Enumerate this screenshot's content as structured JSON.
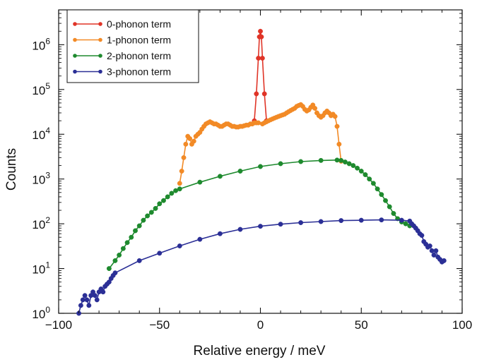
{
  "chart_data": {
    "type": "scatter",
    "xlabel": "Relative  energy /  meV",
    "ylabel": "Counts",
    "xlim": [
      -100,
      100
    ],
    "ylim": [
      1,
      6000000
    ],
    "y_scale": "log",
    "grid": false,
    "legend_position": "top-left",
    "x_ticks": [
      -100,
      -50,
      0,
      50,
      100
    ],
    "x_tick_labels": [
      "−100",
      "−50",
      "0",
      "50",
      "100"
    ],
    "y_ticks": [
      1,
      10,
      100,
      1000,
      10000,
      100000,
      1000000
    ],
    "y_tick_labels": [
      {
        "base": "10",
        "exp": "0"
      },
      {
        "base": "10",
        "exp": "1"
      },
      {
        "base": "10",
        "exp": "2"
      },
      {
        "base": "10",
        "exp": "3"
      },
      {
        "base": "10",
        "exp": "4"
      },
      {
        "base": "10",
        "exp": "5"
      },
      {
        "base": "10",
        "exp": "6"
      }
    ],
    "series": [
      {
        "name": "0-phonon term",
        "color": "#e03427",
        "x": [
          -3.0,
          -2.0,
          -1.0,
          -0.5,
          0.0,
          0.5,
          1.0,
          2.0,
          3.0
        ],
        "y": [
          20000,
          80000,
          500000,
          1500000,
          2000000,
          1500000,
          500000,
          80000,
          20000
        ]
      },
      {
        "name": "1-phonon term",
        "color": "#f28a26",
        "x": [
          -40,
          -39,
          -38,
          -37,
          -36,
          -35,
          -34,
          -33,
          -32,
          -31,
          -30,
          -29,
          -28,
          -27,
          -26,
          -25,
          -24,
          -23,
          -22,
          -21,
          -20,
          -19,
          -18,
          -17,
          -16,
          -15,
          -14,
          -13,
          -12,
          -11,
          -10,
          -9,
          -8,
          -7,
          -6,
          -5,
          -4,
          -3,
          -2,
          -1,
          1,
          2,
          3,
          4,
          5,
          6,
          7,
          8,
          9,
          10,
          11,
          12,
          13,
          14,
          15,
          16,
          17,
          18,
          19,
          20,
          21,
          22,
          23,
          24,
          25,
          26,
          27,
          28,
          29,
          30,
          31,
          32,
          33,
          34,
          35,
          36,
          37,
          38,
          39,
          40
        ],
        "y": [
          800,
          1500,
          3000,
          6000,
          9000,
          8000,
          6000,
          7000,
          9000,
          10000,
          11000,
          13000,
          15000,
          17000,
          18000,
          19000,
          18000,
          17000,
          17000,
          16000,
          15000,
          15000,
          16000,
          17000,
          17000,
          16000,
          15000,
          15000,
          14500,
          14500,
          15000,
          15000,
          15500,
          16000,
          16000,
          17000,
          17000,
          18000,
          18000,
          18000,
          17000,
          18000,
          19000,
          20000,
          21000,
          22000,
          23000,
          24000,
          25000,
          26000,
          27000,
          28000,
          30000,
          32000,
          34000,
          36000,
          38000,
          42000,
          44000,
          46000,
          42000,
          36000,
          33000,
          35000,
          40000,
          45000,
          38000,
          30000,
          26000,
          24000,
          26000,
          30000,
          33000,
          30000,
          26000,
          28000,
          25000,
          15000,
          6000,
          2500
        ]
      },
      {
        "name": "2-phonon term",
        "color": "#1e8a2e",
        "x": [
          -75,
          -72,
          -70,
          -68,
          -66,
          -64,
          -62,
          -60,
          -58,
          -56,
          -54,
          -52,
          -50,
          -48,
          -46,
          -44,
          -42,
          -40,
          -30,
          -20,
          -10,
          0,
          10,
          20,
          30,
          38,
          40,
          42,
          44,
          46,
          48,
          50,
          52,
          54,
          56,
          58,
          60,
          62,
          64,
          66,
          68,
          70,
          72,
          74
        ],
        "y": [
          10,
          15,
          20,
          28,
          38,
          50,
          70,
          90,
          120,
          150,
          180,
          220,
          280,
          330,
          400,
          480,
          550,
          600,
          850,
          1150,
          1500,
          1900,
          2200,
          2450,
          2600,
          2650,
          2600,
          2400,
          2200,
          2000,
          1750,
          1500,
          1250,
          1000,
          800,
          600,
          450,
          330,
          240,
          170,
          130,
          110,
          100,
          90
        ]
      },
      {
        "name": "3-phonon term",
        "color": "#2b2f96",
        "x": [
          -90,
          -89,
          -88,
          -87,
          -86,
          -85,
          -84,
          -83,
          -82,
          -81,
          -80,
          -79,
          -78,
          -77,
          -76,
          -75,
          -74,
          -73,
          -72,
          -60,
          -50,
          -40,
          -30,
          -20,
          -10,
          0,
          10,
          20,
          30,
          40,
          50,
          60,
          70,
          74,
          75,
          76,
          77,
          78,
          79,
          80,
          81,
          82,
          83,
          84,
          85,
          86,
          87,
          88,
          89,
          90,
          91
        ],
        "y": [
          1,
          1.5,
          2,
          2.5,
          2,
          1.5,
          2.5,
          3,
          2.5,
          2,
          3,
          3.5,
          3,
          4,
          4.5,
          5,
          6,
          7,
          8,
          15,
          22,
          32,
          45,
          60,
          75,
          88,
          98,
          106,
          112,
          118,
          120,
          122,
          120,
          115,
          100,
          90,
          80,
          70,
          60,
          55,
          40,
          35,
          30,
          32,
          25,
          20,
          25,
          18,
          16,
          14,
          15
        ]
      }
    ]
  }
}
